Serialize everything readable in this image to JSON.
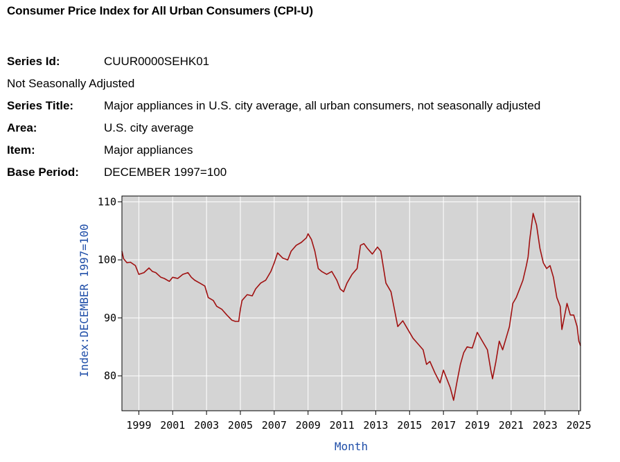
{
  "header": {
    "title": "Consumer Price Index for All Urban Consumers (CPI-U)"
  },
  "meta": {
    "series_id_label": "Series Id:",
    "series_id": "CUUR0000SEHK01",
    "adjustment": "Not Seasonally Adjusted",
    "series_title_label": "Series Title:",
    "series_title": "Major appliances in U.S. city average, all urban consumers, not seasonally adjusted",
    "area_label": "Area:",
    "area": "U.S. city average",
    "item_label": "Item:",
    "item": "Major appliances",
    "base_period_label": "Base Period:",
    "base_period": "DECEMBER 1997=100"
  },
  "colors": {
    "plot_bg": "#d4d4d4",
    "grid": "#ffffff",
    "line": "#a01010",
    "axis_title": "#1f4ea8"
  },
  "chart_data": {
    "type": "line",
    "title": "",
    "xlabel": "Month",
    "ylabel": "Index:DECEMBER 1997=100",
    "xlim": [
      1998.0,
      2025.1
    ],
    "ylim": [
      74,
      111
    ],
    "xticks": [
      1999,
      2001,
      2003,
      2005,
      2007,
      2009,
      2011,
      2013,
      2015,
      2017,
      2019,
      2021,
      2023,
      2025
    ],
    "xtick_labels": [
      "1999",
      "2001",
      "2003",
      "2005",
      "2007",
      "2009",
      "2011",
      "2013",
      "2015",
      "2017",
      "2019",
      "2021",
      "2023",
      "2025"
    ],
    "yticks": [
      80,
      90,
      100,
      110
    ],
    "ytick_labels": [
      "80",
      "90",
      "100",
      "110"
    ],
    "grid": true,
    "series": [
      {
        "name": "Major appliances",
        "x": [
          1998.0,
          1998.1,
          1998.3,
          1998.5,
          1998.8,
          1999.0,
          1999.3,
          1999.6,
          1999.8,
          2000.0,
          2000.3,
          2000.5,
          2000.8,
          2001.0,
          2001.3,
          2001.6,
          2001.9,
          2002.1,
          2002.3,
          2002.6,
          2002.9,
          2003.1,
          2003.4,
          2003.6,
          2003.9,
          2004.2,
          2004.5,
          2004.7,
          2004.9,
          2005.0,
          2005.1,
          2005.4,
          2005.7,
          2005.9,
          2006.2,
          2006.5,
          2006.8,
          2007.0,
          2007.2,
          2007.5,
          2007.8,
          2008.0,
          2008.3,
          2008.6,
          2008.9,
          2009.0,
          2009.2,
          2009.4,
          2009.6,
          2009.8,
          2010.1,
          2010.4,
          2010.7,
          2010.9,
          2011.1,
          2011.3,
          2011.6,
          2011.9,
          2012.1,
          2012.3,
          2012.5,
          2012.8,
          2013.1,
          2013.3,
          2013.6,
          2013.9,
          2014.1,
          2014.3,
          2014.6,
          2014.9,
          2015.2,
          2015.5,
          2015.8,
          2016.0,
          2016.2,
          2016.5,
          2016.8,
          2017.0,
          2017.2,
          2017.4,
          2017.6,
          2017.8,
          2018.0,
          2018.2,
          2018.4,
          2018.7,
          2019.0,
          2019.3,
          2019.6,
          2019.8,
          2019.9,
          2020.1,
          2020.3,
          2020.5,
          2020.7,
          2020.9,
          2021.1,
          2021.3,
          2021.5,
          2021.7,
          2021.9,
          2022.0,
          2022.1,
          2022.3,
          2022.5,
          2022.7,
          2022.9,
          2023.1,
          2023.3,
          2023.5,
          2023.7,
          2023.9,
          2024.0,
          2024.1,
          2024.3,
          2024.5,
          2024.7,
          2024.9,
          2025.0,
          2025.1
        ],
        "values": [
          101.5,
          100.2,
          99.5,
          99.6,
          99.0,
          97.5,
          97.8,
          98.6,
          98.0,
          97.8,
          97.0,
          96.8,
          96.3,
          97.0,
          96.8,
          97.5,
          97.8,
          97.0,
          96.5,
          96.0,
          95.5,
          93.5,
          93.0,
          92.0,
          91.5,
          90.5,
          89.6,
          89.4,
          89.4,
          91.5,
          93.0,
          94.0,
          93.8,
          95.0,
          96.0,
          96.5,
          98.0,
          99.5,
          101.2,
          100.3,
          100.0,
          101.5,
          102.5,
          103.0,
          103.8,
          104.5,
          103.5,
          101.5,
          98.5,
          98.0,
          97.5,
          98.0,
          96.5,
          95.0,
          94.5,
          96.0,
          97.5,
          98.5,
          102.5,
          102.8,
          102.0,
          101.0,
          102.2,
          101.5,
          96.0,
          94.5,
          91.5,
          88.5,
          89.5,
          88.0,
          86.5,
          85.5,
          84.5,
          82.0,
          82.5,
          80.5,
          78.8,
          81.0,
          79.5,
          78.0,
          75.8,
          79.0,
          82.0,
          84.0,
          85.0,
          84.8,
          87.5,
          86.0,
          84.5,
          81.0,
          79.5,
          82.5,
          86.0,
          84.5,
          86.5,
          88.5,
          92.5,
          93.5,
          95.0,
          96.5,
          99.0,
          100.5,
          103.5,
          108.0,
          106.0,
          102.0,
          99.5,
          98.5,
          99.0,
          97.0,
          93.5,
          92.0,
          88.0,
          89.5,
          92.5,
          90.5,
          90.5,
          88.5,
          86.0,
          85.2
        ]
      }
    ]
  }
}
